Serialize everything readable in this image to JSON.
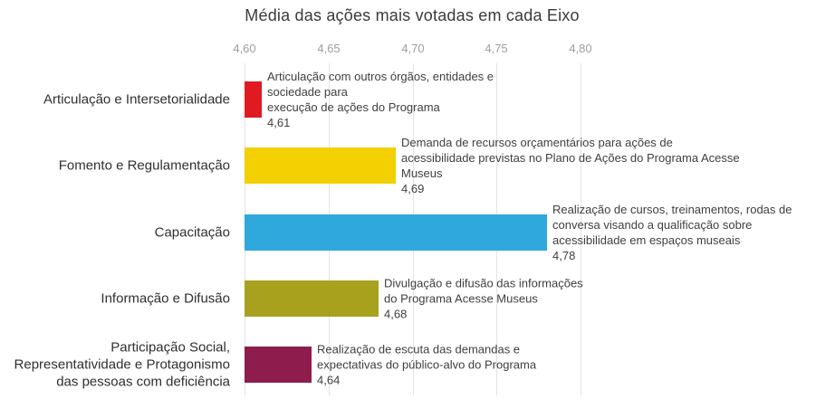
{
  "chart_data": {
    "type": "bar",
    "orientation": "horizontal",
    "title": "Média das ações mais votadas em cada Eixo",
    "categories": [
      "Articulação e Intersetorialidade",
      "Fomento e Regulamentação",
      "Capacitação",
      "Informação e Difusão",
      "Participação Social,\nRepresentatividade e Protagonismo\ndas pessoas com deficiência"
    ],
    "values": [
      4.61,
      4.69,
      4.78,
      4.68,
      4.64
    ],
    "value_labels": [
      "4,61",
      "4,69",
      "4,78",
      "4,68",
      "4,64"
    ],
    "annotations": [
      "Articulação com outros órgãos, entidades e sociedade para\nexecução de ações do Programa",
      "Demanda de recursos orçamentários para ações de\nacessibilidade previstas no Plano de Ações do Programa Acesse\nMuseus",
      "Realização de cursos, treinamentos, rodas de\nconversa visando a qualificação sobre\nacessibilidade em espaços museais",
      "Divulgação e difusão das informações\ndo Programa Acesse Museus",
      "Realização de escuta das demandas e\nexpectativas do público-alvo do Programa"
    ],
    "bar_colors": [
      "#df1a21",
      "#f2d001",
      "#2fa8dc",
      "#a8a11e",
      "#8e1c4d"
    ],
    "x_ticks": [
      "4,60",
      "4,65",
      "4,70",
      "4,75",
      "4,80"
    ],
    "xlim": [
      4.6,
      4.8
    ],
    "grid": true,
    "legend": "none",
    "colors": {
      "gridline": "#e3e3e3",
      "tick_label": "#9e9e9e",
      "category_label": "#2f2f2f",
      "annotation_text": "#404040",
      "title": "#3a3a3a",
      "background": "#ffffff"
    }
  }
}
